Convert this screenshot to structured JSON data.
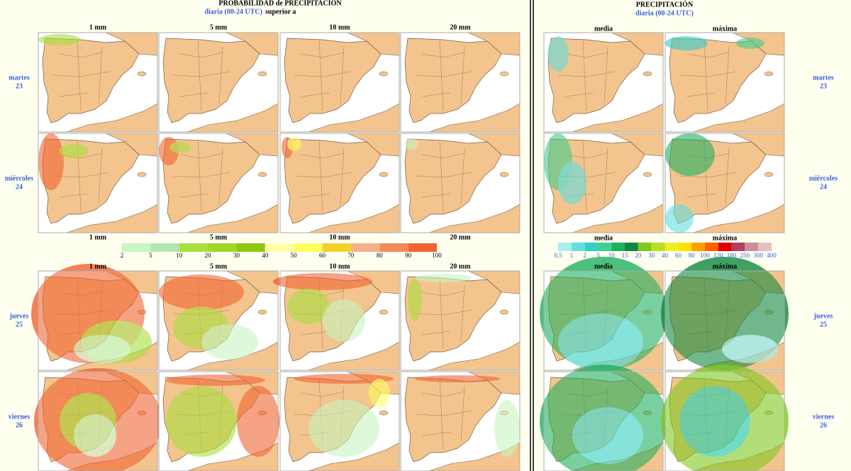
{
  "rows": [
    {
      "day": "martes",
      "date": "23"
    },
    {
      "day": "miércoles",
      "date": "24"
    },
    {
      "day": "jueves",
      "date": "25"
    },
    {
      "day": "viernes",
      "date": "26"
    }
  ],
  "probability": {
    "title": "PROBABILIDAD de PRECIPITACIÓN",
    "subtitle": "diaria (00-24 UTC)",
    "subtitle_suffix": "superior a",
    "columns": [
      "1 mm",
      "5 mm",
      "10 mm",
      "20 mm"
    ],
    "colorbar": {
      "labels": [
        "2",
        "5",
        "10",
        "20",
        "30",
        "40",
        "50",
        "60",
        "70",
        "80",
        "90",
        "100"
      ],
      "colors": [
        "#c8f5c0",
        "#b2e6b0",
        "#a8e040",
        "#9ed828",
        "#8cc810",
        "#ffffa8",
        "#ffff60",
        "#f2d22a",
        "#f4b088",
        "#f28a5a",
        "#f06432"
      ]
    }
  },
  "amount": {
    "title": "PRECIPITACIÓN",
    "subtitle": "diaria (00-24 UTC)",
    "columns": [
      "media",
      "máxima"
    ],
    "colorbar": {
      "labels": [
        "0.5",
        "1",
        "2",
        "5",
        "10",
        "15",
        "20",
        "30",
        "40",
        "60",
        "80",
        "100",
        "120",
        "180",
        "250",
        "300",
        "400"
      ],
      "colors": [
        "#a8f0f0",
        "#60e0e0",
        "#30d0c8",
        "#40d090",
        "#20b060",
        "#108840",
        "#80c820",
        "#b8e020",
        "#e8f020",
        "#ffe000",
        "#ffa000",
        "#ff6000",
        "#e00000",
        "#b04060",
        "#c89098",
        "#e0c0c0"
      ]
    }
  }
}
